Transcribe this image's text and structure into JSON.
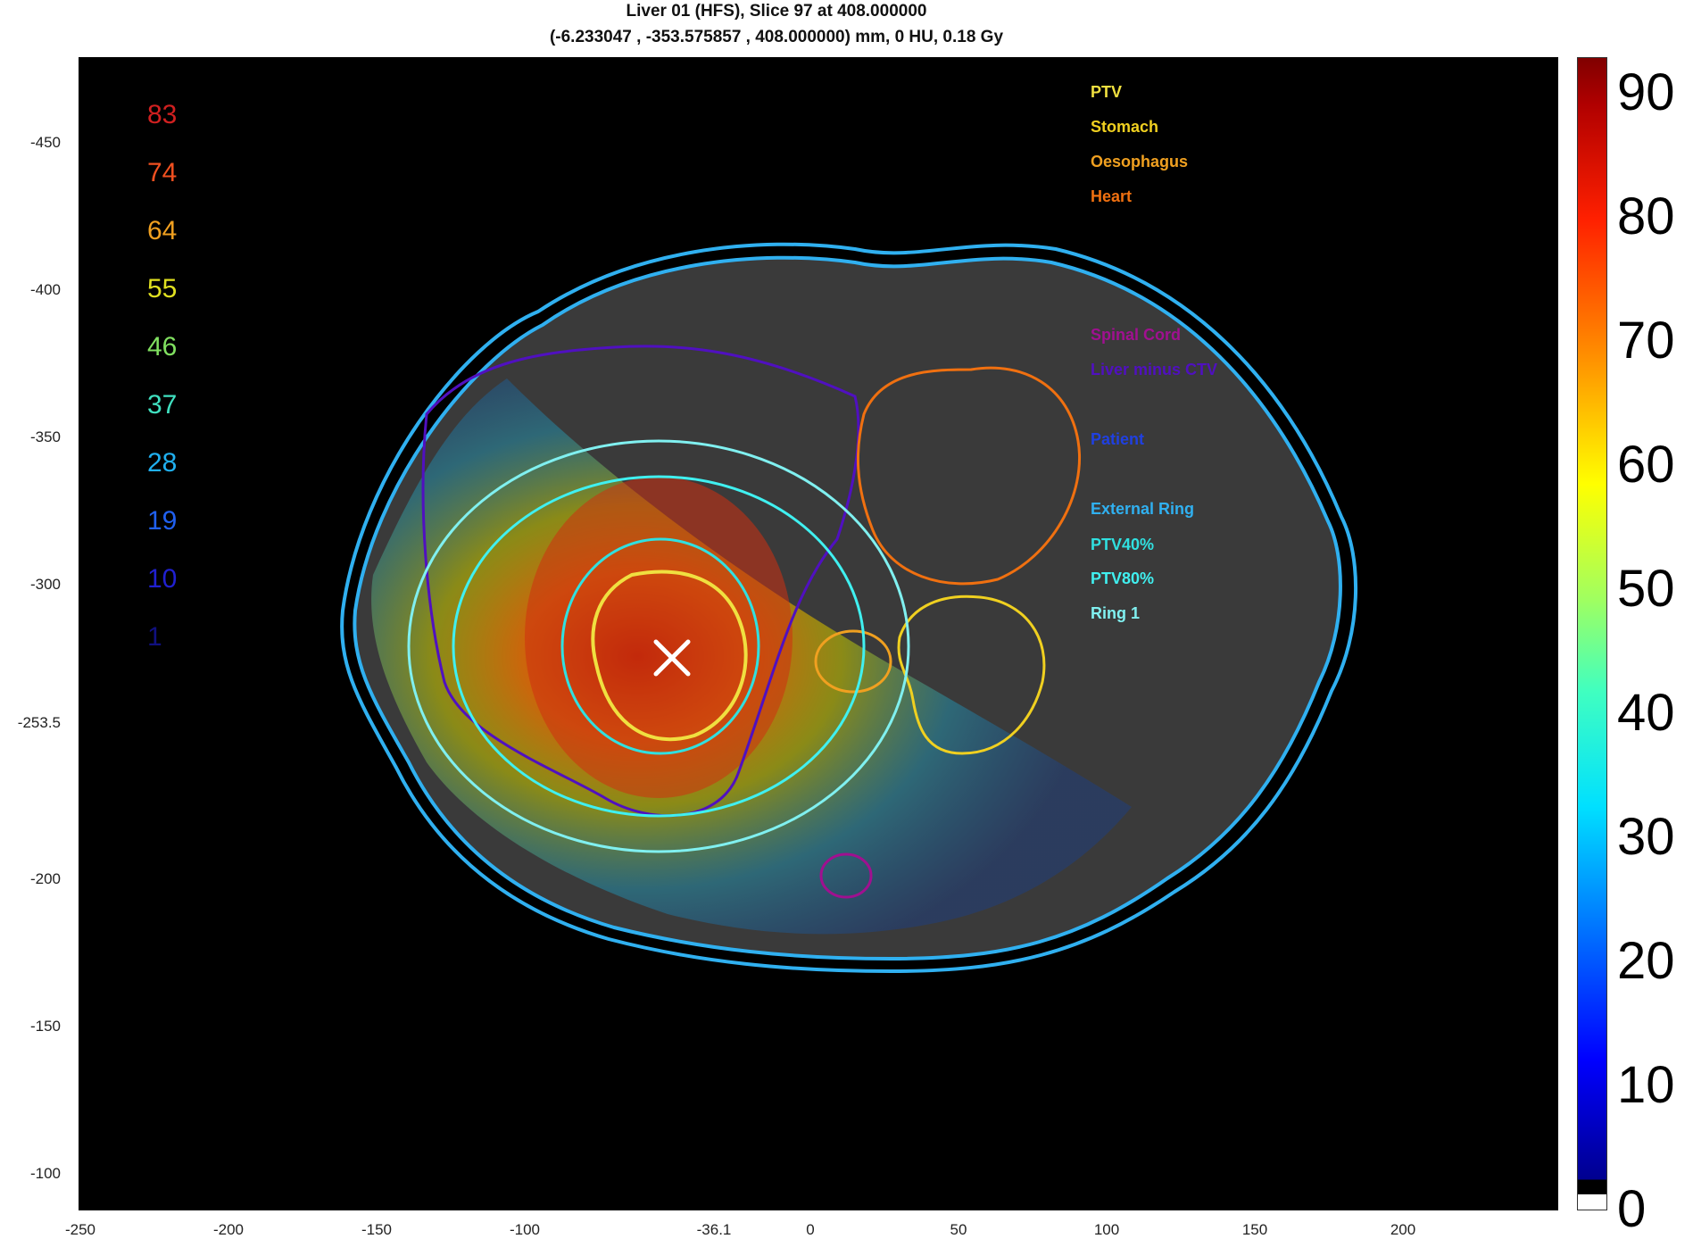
{
  "title": {
    "line1": "Liver 01 (HFS), Slice 97 at 408.000000",
    "line2": "(-6.233047 , -353.575857 , 408.000000) mm, 0 HU, 0.18 Gy"
  },
  "axes": {
    "y_ticks": [
      "-450",
      "-400",
      "-350",
      "-300",
      "-253.5",
      "-200",
      "-150",
      "-100"
    ],
    "x_ticks": [
      "-250",
      "-200",
      "-150",
      "-100",
      "-36.1",
      "0",
      "50",
      "100",
      "150",
      "200"
    ]
  },
  "isodose_levels": [
    {
      "value": "83",
      "color": "#d02020"
    },
    {
      "value": "74",
      "color": "#f05020"
    },
    {
      "value": "64",
      "color": "#f0a020"
    },
    {
      "value": "55",
      "color": "#e0e020"
    },
    {
      "value": "46",
      "color": "#80e060"
    },
    {
      "value": "37",
      "color": "#40e0c0"
    },
    {
      "value": "28",
      "color": "#20b0f0"
    },
    {
      "value": "19",
      "color": "#2060f0"
    },
    {
      "value": "10",
      "color": "#2020d0"
    },
    {
      "value": "1",
      "color": "#101080"
    }
  ],
  "structure_legend": [
    {
      "name": "PTV",
      "color": "#f0e040"
    },
    {
      "name": "Stomach",
      "color": "#f0d020"
    },
    {
      "name": "Oesophagus",
      "color": "#f0a020"
    },
    {
      "name": "Heart",
      "color": "#f07010"
    },
    {
      "name": "Spinal Cord",
      "color": "#a01090"
    },
    {
      "name": "Liver minus CTV",
      "color": "#5010c0"
    },
    {
      "name": "Patient",
      "color": "#2040e0"
    },
    {
      "name": "External Ring",
      "color": "#30b0f0"
    },
    {
      "name": "PTV40%",
      "color": "#30e0e0"
    },
    {
      "name": "PTV80%",
      "color": "#40f0f0"
    },
    {
      "name": "Ring 1",
      "color": "#80f0f0"
    }
  ],
  "colorbar": {
    "ticks": [
      "0",
      "10",
      "20",
      "30",
      "40",
      "50",
      "60",
      "70",
      "80",
      "90"
    ],
    "max": 93
  },
  "colors": {
    "ptv": "#f0e040",
    "stomach": "#f0d020",
    "oesophagus": "#f0a020",
    "heart": "#f07010",
    "spinal_cord": "#a01090",
    "liver": "#5010c0",
    "patient": "#2040e0",
    "external_ring": "#30b0f0",
    "ptv40": "#30e0e0",
    "ptv80": "#40f0f0",
    "ring1": "#80f0f0"
  }
}
